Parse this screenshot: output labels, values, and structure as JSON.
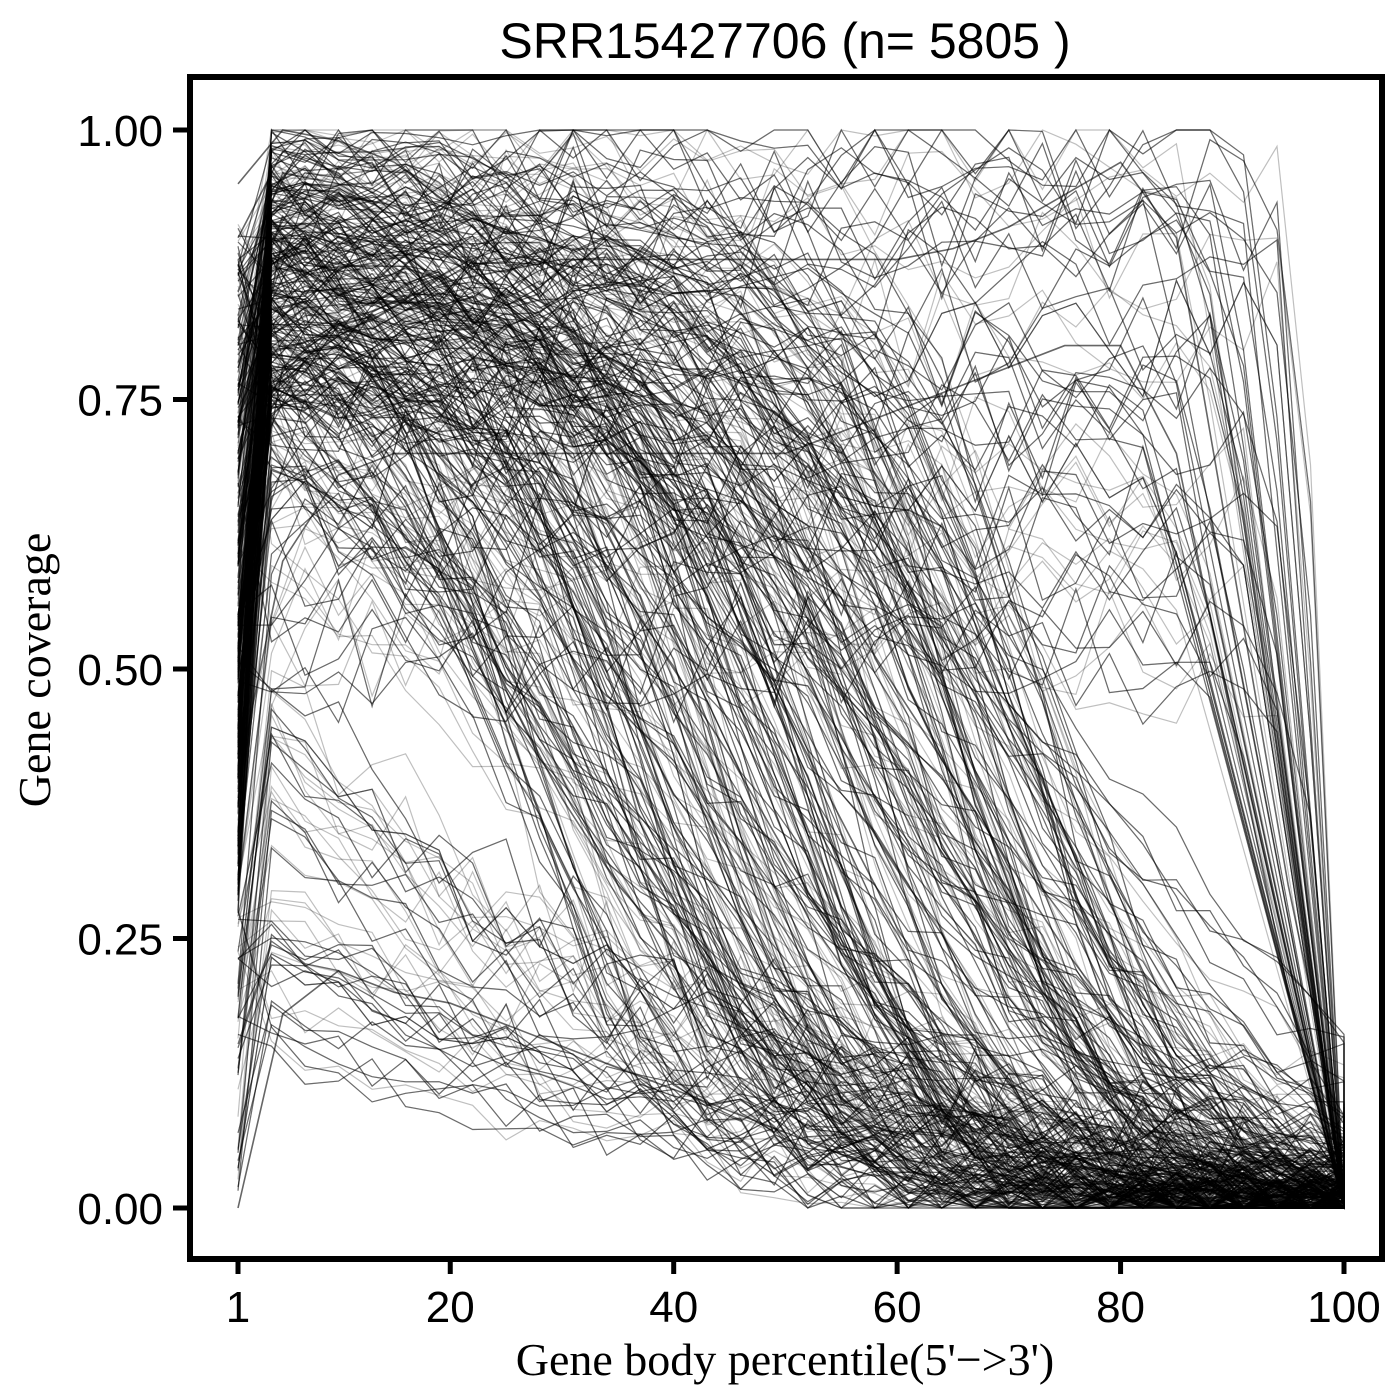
{
  "chart_data": {
    "type": "line",
    "title": "SRR15427706 (n= 5805 )",
    "xlabel": "Gene body percentile(5'−>3')",
    "ylabel": "Gene coverage",
    "xlim": [
      1,
      100
    ],
    "ylim": [
      0,
      1
    ],
    "x_ticks": [
      "1",
      "20",
      "40",
      "60",
      "80",
      "100"
    ],
    "y_ticks": [
      "0.00",
      "0.25",
      "0.50",
      "0.75",
      "1.00"
    ],
    "n_genes": 5805,
    "line_color": "#000000",
    "line_opacity": 0.25,
    "grid": false,
    "legend": "none",
    "series_representative": [
      {
        "x": [
          1,
          5,
          10,
          15,
          20,
          25,
          30,
          35,
          40,
          45,
          50,
          55,
          60,
          65,
          70,
          75,
          80,
          85,
          90,
          95,
          100
        ],
        "y": [
          0.9,
          0.98,
          0.96,
          0.9,
          0.82,
          0.74,
          0.66,
          0.58,
          0.5,
          0.42,
          0.33,
          0.24,
          0.16,
          0.1,
          0.06,
          0.04,
          0.03,
          0.02,
          0.015,
          0.01,
          0.01
        ]
      },
      {
        "x": [
          1,
          5,
          10,
          15,
          20,
          25,
          30,
          35,
          40,
          45,
          50,
          55,
          60,
          65,
          70,
          75,
          80,
          85,
          90,
          95,
          100
        ],
        "y": [
          0.85,
          0.96,
          0.95,
          0.92,
          0.88,
          0.84,
          0.78,
          0.72,
          0.65,
          0.56,
          0.46,
          0.36,
          0.26,
          0.18,
          0.12,
          0.08,
          0.06,
          0.04,
          0.03,
          0.02,
          0.01
        ]
      },
      {
        "x": [
          1,
          5,
          10,
          15,
          20,
          25,
          30,
          35,
          40,
          45,
          50,
          55,
          60,
          65,
          70,
          75,
          80,
          85,
          90,
          95,
          100
        ],
        "y": [
          0.8,
          0.92,
          0.86,
          0.74,
          0.6,
          0.48,
          0.38,
          0.3,
          0.24,
          0.18,
          0.13,
          0.09,
          0.06,
          0.04,
          0.03,
          0.02,
          0.015,
          0.01,
          0.01,
          0.005,
          0.0
        ]
      },
      {
        "x": [
          1,
          5,
          10,
          15,
          20,
          25,
          30,
          35,
          40,
          45,
          50,
          55,
          60,
          65,
          70,
          75,
          80,
          85,
          90,
          95,
          100
        ],
        "y": [
          0.7,
          0.9,
          0.94,
          0.93,
          0.9,
          0.86,
          0.82,
          0.78,
          0.74,
          0.7,
          0.64,
          0.56,
          0.48,
          0.4,
          0.32,
          0.24,
          0.17,
          0.11,
          0.07,
          0.04,
          0.02
        ]
      },
      {
        "x": [
          1,
          5,
          10,
          15,
          20,
          25,
          30,
          35,
          40,
          45,
          50,
          55,
          60,
          65,
          70,
          75,
          80,
          85,
          90,
          95,
          100
        ],
        "y": [
          0.55,
          0.78,
          0.82,
          0.84,
          0.86,
          0.87,
          0.88,
          0.88,
          0.88,
          0.88,
          0.88,
          0.88,
          0.88,
          0.89,
          0.91,
          0.94,
          0.97,
          0.9,
          0.6,
          0.3,
          0.05
        ]
      },
      {
        "x": [
          1,
          5,
          10,
          15,
          20,
          25,
          30,
          35,
          40,
          45,
          50,
          55,
          60,
          65,
          70,
          75,
          80,
          85,
          90,
          95,
          100
        ],
        "y": [
          0.4,
          0.6,
          0.68,
          0.7,
          0.7,
          0.7,
          0.7,
          0.7,
          0.7,
          0.7,
          0.7,
          0.72,
          0.74,
          0.76,
          0.78,
          0.8,
          0.8,
          0.7,
          0.45,
          0.2,
          0.03
        ]
      },
      {
        "x": [
          1,
          5,
          10,
          15,
          20,
          25,
          30,
          35,
          40,
          45,
          50,
          55,
          60,
          65,
          70,
          75,
          80,
          85,
          90,
          95,
          100
        ],
        "y": [
          0.0,
          0.18,
          0.22,
          0.2,
          0.19,
          0.17,
          0.15,
          0.13,
          0.11,
          0.09,
          0.07,
          0.05,
          0.03,
          0.02,
          0.015,
          0.01,
          0.005,
          0.0,
          0.0,
          0.0,
          0.0
        ]
      },
      {
        "x": [
          1,
          5,
          10,
          15,
          20,
          25,
          30,
          35,
          40,
          45,
          50,
          55,
          60,
          65,
          70,
          75,
          80,
          85,
          90,
          95,
          100
        ],
        "y": [
          0.95,
          1.0,
          0.99,
          0.97,
          0.93,
          0.88,
          0.82,
          0.74,
          0.64,
          0.52,
          0.4,
          0.28,
          0.18,
          0.11,
          0.07,
          0.05,
          0.03,
          0.02,
          0.015,
          0.01,
          0.01
        ]
      }
    ]
  }
}
